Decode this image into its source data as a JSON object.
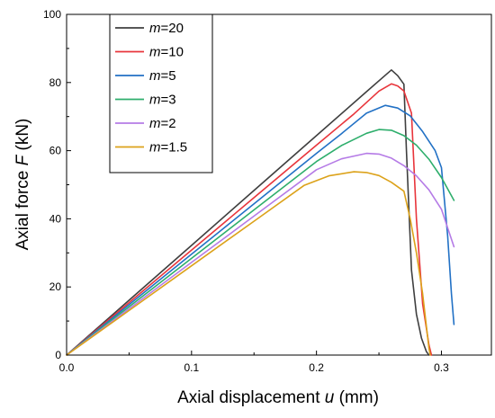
{
  "chart_data": {
    "type": "line",
    "title": "",
    "xlabel": {
      "prefix": "Axial displacement ",
      "symbol": "u",
      "suffix": " (mm)"
    },
    "ylabel": {
      "prefix": "Axial force ",
      "symbol": "F",
      "suffix": " (kN)"
    },
    "xlim": [
      0,
      0.34
    ],
    "ylim": [
      0,
      100
    ],
    "x_ticks": [
      0.0,
      0.1,
      0.2,
      0.3
    ],
    "x_tick_labels": [
      "0.0",
      "0.1",
      "0.2",
      "0.3"
    ],
    "y_ticks": [
      0,
      20,
      40,
      60,
      80,
      100
    ],
    "y_tick_labels": [
      "0",
      "20",
      "40",
      "60",
      "80",
      "100"
    ],
    "grid": false,
    "legend": {
      "position": "top-left",
      "entries": [
        {
          "symbol": "m",
          "value": "=20"
        },
        {
          "symbol": "m",
          "value": "=10"
        },
        {
          "symbol": "m",
          "value": "=5"
        },
        {
          "symbol": "m",
          "value": "=3"
        },
        {
          "symbol": "m",
          "value": "=2"
        },
        {
          "symbol": "m",
          "value": "=1.5"
        }
      ]
    },
    "series": [
      {
        "color": "#3f3f3f",
        "points": [
          [
            0,
            0
          ],
          [
            0.05,
            16.1
          ],
          [
            0.1,
            32.2
          ],
          [
            0.15,
            48.3
          ],
          [
            0.2,
            64.4
          ],
          [
            0.24,
            77.3
          ],
          [
            0.255,
            82.1
          ],
          [
            0.26,
            83.7
          ],
          [
            0.265,
            82
          ],
          [
            0.27,
            79.5
          ],
          [
            0.272,
            60
          ],
          [
            0.276,
            25
          ],
          [
            0.28,
            12
          ],
          [
            0.284,
            5
          ],
          [
            0.288,
            1
          ],
          [
            0.29,
            0
          ]
        ]
      },
      {
        "color": "#e8353b",
        "points": [
          [
            0,
            0
          ],
          [
            0.05,
            15.4
          ],
          [
            0.1,
            30.8
          ],
          [
            0.15,
            46.2
          ],
          [
            0.2,
            61.6
          ],
          [
            0.23,
            70.8
          ],
          [
            0.25,
            77.5
          ],
          [
            0.26,
            79.6
          ],
          [
            0.265,
            79
          ],
          [
            0.27,
            77.5
          ],
          [
            0.276,
            71
          ],
          [
            0.28,
            40
          ],
          [
            0.285,
            15
          ],
          [
            0.29,
            3
          ],
          [
            0.292,
            0
          ]
        ]
      },
      {
        "color": "#2271c5",
        "points": [
          [
            0,
            0
          ],
          [
            0.05,
            14.8
          ],
          [
            0.1,
            29.6
          ],
          [
            0.15,
            44.4
          ],
          [
            0.2,
            59.2
          ],
          [
            0.22,
            65
          ],
          [
            0.24,
            71
          ],
          [
            0.255,
            73.3
          ],
          [
            0.265,
            72.5
          ],
          [
            0.275,
            70.2
          ],
          [
            0.285,
            65.6
          ],
          [
            0.295,
            60
          ],
          [
            0.3,
            55
          ],
          [
            0.305,
            35
          ],
          [
            0.308,
            18
          ],
          [
            0.31,
            9
          ]
        ]
      },
      {
        "color": "#2eae6c",
        "points": [
          [
            0,
            0
          ],
          [
            0.05,
            14.2
          ],
          [
            0.1,
            28.4
          ],
          [
            0.15,
            42.6
          ],
          [
            0.2,
            56.8
          ],
          [
            0.22,
            61.5
          ],
          [
            0.24,
            65.1
          ],
          [
            0.25,
            66.2
          ],
          [
            0.26,
            66
          ],
          [
            0.27,
            64.4
          ],
          [
            0.28,
            61.6
          ],
          [
            0.29,
            57.5
          ],
          [
            0.3,
            52.1
          ],
          [
            0.31,
            45.4
          ]
        ]
      },
      {
        "color": "#b57be6",
        "points": [
          [
            0,
            0
          ],
          [
            0.05,
            13.6
          ],
          [
            0.1,
            27.2
          ],
          [
            0.15,
            40.8
          ],
          [
            0.2,
            54.4
          ],
          [
            0.22,
            57.6
          ],
          [
            0.24,
            59.2
          ],
          [
            0.25,
            59
          ],
          [
            0.26,
            57.8
          ],
          [
            0.27,
            55.6
          ],
          [
            0.28,
            52.6
          ],
          [
            0.29,
            48.5
          ],
          [
            0.3,
            42.8
          ],
          [
            0.31,
            31.8
          ]
        ]
      },
      {
        "color": "#dca21a",
        "points": [
          [
            0,
            0
          ],
          [
            0.05,
            13.1
          ],
          [
            0.1,
            26.2
          ],
          [
            0.15,
            39.3
          ],
          [
            0.19,
            49.8
          ],
          [
            0.21,
            52.6
          ],
          [
            0.23,
            53.8
          ],
          [
            0.24,
            53.6
          ],
          [
            0.25,
            52.7
          ],
          [
            0.26,
            50.7
          ],
          [
            0.27,
            48.1
          ],
          [
            0.275,
            40
          ],
          [
            0.28,
            30
          ],
          [
            0.285,
            18
          ],
          [
            0.29,
            2
          ],
          [
            0.291,
            0
          ]
        ]
      }
    ]
  }
}
